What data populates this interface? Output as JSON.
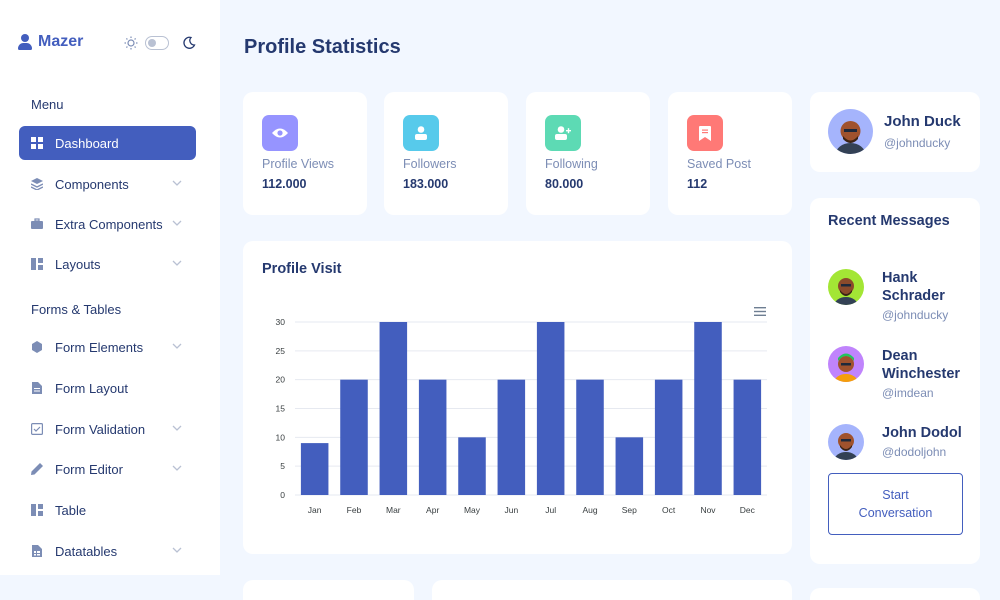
{
  "brand": {
    "name": "Mazer"
  },
  "sidebar": {
    "menu_title": "Menu",
    "forms_title": "Forms & Tables",
    "items": [
      {
        "label": "Dashboard",
        "icon": "grid-icon",
        "active": true,
        "chevron": false
      },
      {
        "label": "Components",
        "icon": "stack-icon",
        "chevron": true
      },
      {
        "label": "Extra Components",
        "icon": "briefcase-icon",
        "chevron": true
      },
      {
        "label": "Layouts",
        "icon": "layout-icon",
        "chevron": true
      },
      {
        "label": "Form Elements",
        "icon": "hexagon-icon",
        "chevron": true
      },
      {
        "label": "Form Layout",
        "icon": "file-icon",
        "chevron": false
      },
      {
        "label": "Form Validation",
        "icon": "check-square-icon",
        "chevron": true
      },
      {
        "label": "Form Editor",
        "icon": "pen-icon",
        "chevron": true
      },
      {
        "label": "Table",
        "icon": "table-icon",
        "chevron": false
      },
      {
        "label": "Datatables",
        "icon": "spreadsheet-icon",
        "chevron": true
      }
    ]
  },
  "page": {
    "title": "Profile Statistics"
  },
  "stats": [
    {
      "label": "Profile Views",
      "value": "112.000",
      "color": "#9694ff",
      "icon": "eye-icon"
    },
    {
      "label": "Followers",
      "value": "183.000",
      "color": "#57caeb",
      "icon": "user-icon"
    },
    {
      "label": "Following",
      "value": "80.000",
      "color": "#5ddab4",
      "icon": "user-plus-icon"
    },
    {
      "label": "Saved Post",
      "value": "112",
      "color": "#ff7976",
      "icon": "bookmark-icon"
    }
  ],
  "profile": {
    "name": "John Duck",
    "handle": "@johnducky"
  },
  "recent_messages": {
    "title": "Recent Messages",
    "items": [
      {
        "name": "Hank Schrader",
        "handle": "@johnducky",
        "avatar_bg": "#a3e635"
      },
      {
        "name": "Dean Winchester",
        "handle": "@imdean",
        "avatar_bg": "#c084fc"
      },
      {
        "name": "John Dodol",
        "handle": "@dodoljohn",
        "avatar_bg": "#a5b4fc"
      }
    ],
    "button_label": "Start Conversation"
  },
  "chart_data": {
    "type": "bar",
    "title": "Profile Visit",
    "categories": [
      "Jan",
      "Feb",
      "Mar",
      "Apr",
      "May",
      "Jun",
      "Jul",
      "Aug",
      "Sep",
      "Oct",
      "Nov",
      "Dec"
    ],
    "values": [
      9,
      20,
      30,
      20,
      10,
      20,
      30,
      20,
      10,
      20,
      30,
      20
    ],
    "ylim": [
      0,
      30
    ],
    "yticks": [
      0,
      5,
      10,
      15,
      20,
      25,
      30
    ],
    "bar_color": "#435ebe",
    "grid": true
  }
}
